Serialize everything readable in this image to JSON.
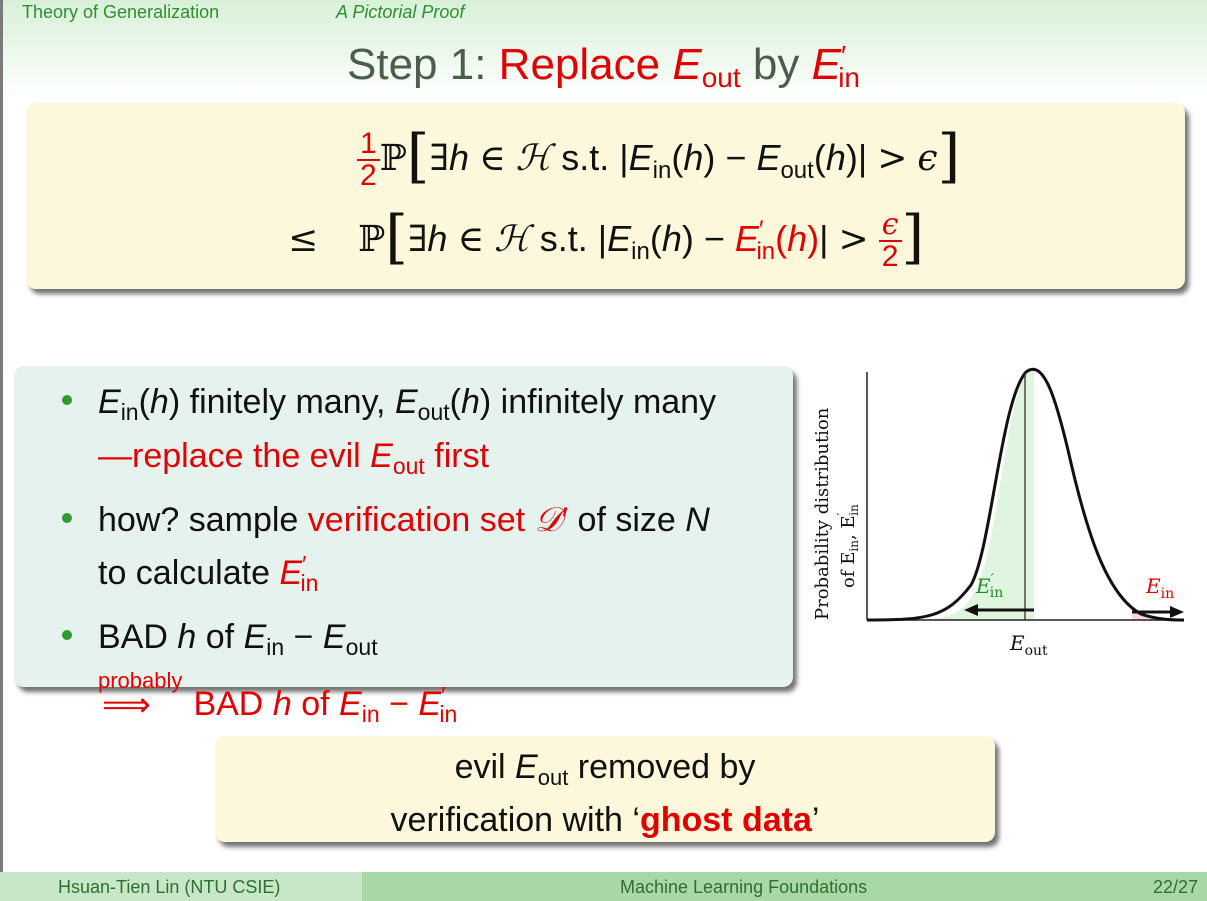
{
  "header": {
    "section": "Theory of Generalization",
    "subsection": "A Pictorial Proof"
  },
  "title": {
    "step": "Step 1:",
    "replace": "Replace",
    "E": "E",
    "out": "out",
    "by": "by",
    "in": "in",
    "prime": "′"
  },
  "inequality": {
    "half_num": "1",
    "half_den": "2",
    "P": "ℙ",
    "exists": "∃",
    "h": "h",
    "in_set": "∈",
    "H": "ℋ",
    "st": "s.t.",
    "bar": "|",
    "E": "E",
    "in": "in",
    "out": "out",
    "lparen": "(",
    "rparen": ")",
    "minus": "−",
    "gt": ">",
    "eps": "ϵ",
    "leq": "≤",
    "prime": "′",
    "lbracket": "[",
    "rbracket": "]",
    "eps_den": "2"
  },
  "bullets": {
    "b1_a": "finitely many,",
    "b1_b": "infinitely many",
    "b1_c": "—replace the evil",
    "b1_d": "first",
    "b2_a": "how? sample",
    "b2_b": "verification set",
    "b2_D": "𝒟",
    "b2_c": "of size",
    "b2_N": "N",
    "b2_d": "to calculate",
    "b3_a": "BAD",
    "b3_b": "of",
    "b3_prob": "probably",
    "b3_arrow": "⟹",
    "b3_c": "BAD",
    "b3_d": "of",
    "E": "E",
    "in": "in",
    "out": "out",
    "h": "h",
    "prime": "′",
    "minus": "−",
    "lparen": "(",
    "rparen": ")"
  },
  "chart": {
    "ylabel1": "Probability distribution",
    "ylabel2": "of E",
    "ylabel2_sub": "in",
    "ylabel2_b": ", E",
    "ylabel2_sub2": "in",
    "left_label": "E",
    "left_sub": "in",
    "right_label": "E",
    "right_sub": "in",
    "x_label": "E",
    "x_sub": "out",
    "prime": "′",
    "green": "#e0f5e0",
    "pink": "#ffd4dc",
    "label_green": "#1f8f1f",
    "label_red": "#e00000"
  },
  "conclusion": {
    "line1_a": "evil",
    "line1_b": "removed by",
    "line2_a": "verification with ‘",
    "line2_b": "ghost data",
    "line2_c": "’",
    "E": "E",
    "out": "out"
  },
  "footer": {
    "author": "Hsuan-Tien Lin  (NTU CSIE)",
    "course": "Machine Learning Foundations",
    "page": "22/27"
  }
}
